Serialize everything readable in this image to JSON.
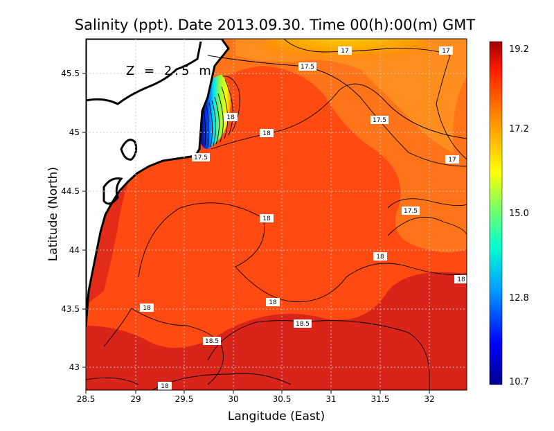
{
  "title": "Salinity (ppt). Date 2013.09.30. Time 00(h):00(m) GMT",
  "depth_label": "Z = 2.5 m",
  "x_axis": {
    "label": "Langitude (East)",
    "ticks": [
      "28.5",
      "29",
      "29.5",
      "30",
      "30.5",
      "31",
      "31.5",
      "32"
    ]
  },
  "y_axis": {
    "label": "Latitude (North)",
    "ticks": [
      "45.5",
      "45",
      "44.5",
      "44",
      "43.5",
      "43"
    ]
  },
  "colorbar": {
    "ticks": [
      "19.2",
      "17.2",
      "15.0",
      "12.8",
      "10.7"
    ],
    "min": 10.7,
    "max": 19.2
  },
  "contour_labels": [
    {
      "id": "c1",
      "text": "17"
    },
    {
      "id": "c2",
      "text": "17"
    },
    {
      "id": "c3",
      "text": "17.5"
    },
    {
      "id": "c4",
      "text": "18"
    },
    {
      "id": "c5",
      "text": "17.5"
    },
    {
      "id": "c6",
      "text": "18"
    },
    {
      "id": "c7",
      "text": "17.5"
    },
    {
      "id": "c8",
      "text": "17"
    },
    {
      "id": "c9",
      "text": "17.5"
    },
    {
      "id": "c10",
      "text": "18"
    },
    {
      "id": "c11",
      "text": "18"
    },
    {
      "id": "c12",
      "text": "18"
    },
    {
      "id": "c13",
      "text": "18"
    },
    {
      "id": "c14",
      "text": "18"
    },
    {
      "id": "c15",
      "text": "18.5"
    },
    {
      "id": "c16",
      "text": "18.5"
    },
    {
      "id": "c17",
      "text": "18"
    }
  ],
  "colors": {
    "sea_base": "#ff5a14",
    "sea_deep": "#d81e14",
    "land": "#ffffff",
    "grid": "#c8c8c8",
    "contour": "#000000"
  }
}
